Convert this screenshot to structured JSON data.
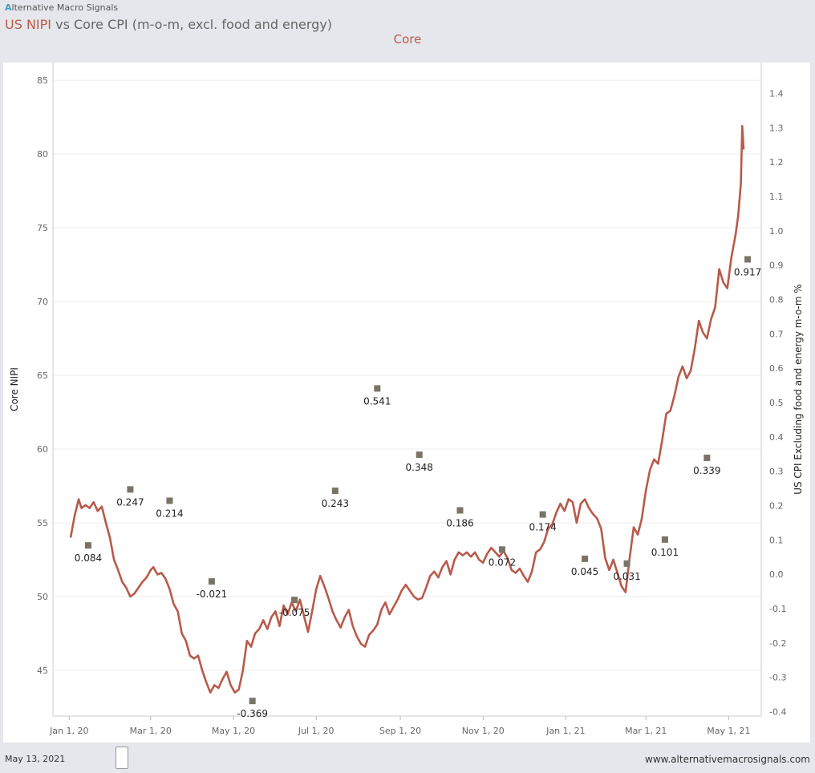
{
  "header": {
    "brand_letter": "A",
    "brand_rest": "lternative Macro Signals",
    "title_highlight": "US NIPI",
    "title_rest": " vs Core CPI (m-o-m, excl. food and energy)",
    "subtitle": "Core"
  },
  "footer": {
    "date": "May 13, 2021",
    "url": "www.alternativemacrosignals.com"
  },
  "colors": {
    "line": "#b85a4a",
    "marker": "#7a7468",
    "grid": "#ececec"
  },
  "chart_data": {
    "type": "line",
    "ylabel": "Core NIPI",
    "y2label": "US CPI Excluding food and energy m-o-m %",
    "ylim": [
      41.9,
      86.2
    ],
    "y2lim": [
      -0.413,
      1.49
    ],
    "yticks": [
      45,
      50,
      55,
      60,
      65,
      70,
      75,
      80,
      85
    ],
    "y2ticks": [
      "-0.4",
      "-0.3",
      "-0.2",
      "-0.1",
      "0.0",
      "0.1",
      "0.2",
      "0.3",
      "0.4",
      "0.5",
      "0.6",
      "0.7",
      "0.8",
      "0.9",
      "1.0",
      "1.1",
      "1.2",
      "1.3",
      "1.4"
    ],
    "xlim": [
      "2019-12-20",
      "2021-05-25"
    ],
    "xticks": [
      {
        "date": "2020-01-01",
        "label": "Jan 1, 20"
      },
      {
        "date": "2020-03-01",
        "label": "Mar 1, 20"
      },
      {
        "date": "2020-05-01",
        "label": "May 1, 20"
      },
      {
        "date": "2020-07-01",
        "label": "Jul 1, 20"
      },
      {
        "date": "2020-09-01",
        "label": "Sep 1, 20"
      },
      {
        "date": "2020-11-01",
        "label": "Nov 1, 20"
      },
      {
        "date": "2021-01-01",
        "label": "Jan 1, 21"
      },
      {
        "date": "2021-03-01",
        "label": "Mar 1, 21"
      },
      {
        "date": "2021-05-01",
        "label": "May 1, 21"
      }
    ],
    "series": [
      {
        "name": "Core NIPI",
        "axis": "left",
        "points": [
          [
            "2020-01-02",
            54.0
          ],
          [
            "2020-01-05",
            55.5
          ],
          [
            "2020-01-08",
            56.6
          ],
          [
            "2020-01-10",
            56.0
          ],
          [
            "2020-01-13",
            56.2
          ],
          [
            "2020-01-16",
            56.0
          ],
          [
            "2020-01-19",
            56.4
          ],
          [
            "2020-01-22",
            55.8
          ],
          [
            "2020-01-25",
            56.1
          ],
          [
            "2020-01-28",
            55.0
          ],
          [
            "2020-01-31",
            54.0
          ],
          [
            "2020-02-03",
            52.5
          ],
          [
            "2020-02-06",
            51.8
          ],
          [
            "2020-02-09",
            51.0
          ],
          [
            "2020-02-12",
            50.6
          ],
          [
            "2020-02-15",
            50.0
          ],
          [
            "2020-02-18",
            50.2
          ],
          [
            "2020-02-21",
            50.6
          ],
          [
            "2020-02-24",
            51.0
          ],
          [
            "2020-02-27",
            51.3
          ],
          [
            "2020-03-01",
            51.8
          ],
          [
            "2020-03-03",
            52.0
          ],
          [
            "2020-03-06",
            51.5
          ],
          [
            "2020-03-09",
            51.6
          ],
          [
            "2020-03-12",
            51.2
          ],
          [
            "2020-03-15",
            50.5
          ],
          [
            "2020-03-18",
            49.5
          ],
          [
            "2020-03-21",
            49.0
          ],
          [
            "2020-03-24",
            47.5
          ],
          [
            "2020-03-27",
            47.0
          ],
          [
            "2020-03-30",
            46.0
          ],
          [
            "2020-04-02",
            45.8
          ],
          [
            "2020-04-05",
            46.0
          ],
          [
            "2020-04-08",
            45.0
          ],
          [
            "2020-04-11",
            44.2
          ],
          [
            "2020-04-14",
            43.5
          ],
          [
            "2020-04-17",
            44.0
          ],
          [
            "2020-04-20",
            43.8
          ],
          [
            "2020-04-23",
            44.4
          ],
          [
            "2020-04-26",
            44.9
          ],
          [
            "2020-04-29",
            44.0
          ],
          [
            "2020-05-02",
            43.5
          ],
          [
            "2020-05-05",
            43.7
          ],
          [
            "2020-05-08",
            45.0
          ],
          [
            "2020-05-11",
            47.0
          ],
          [
            "2020-05-14",
            46.6
          ],
          [
            "2020-05-17",
            47.5
          ],
          [
            "2020-05-20",
            47.8
          ],
          [
            "2020-05-23",
            48.4
          ],
          [
            "2020-05-26",
            47.8
          ],
          [
            "2020-05-29",
            48.6
          ],
          [
            "2020-06-01",
            49.0
          ],
          [
            "2020-06-04",
            48.0
          ],
          [
            "2020-06-07",
            49.4
          ],
          [
            "2020-06-10",
            48.8
          ],
          [
            "2020-06-13",
            49.6
          ],
          [
            "2020-06-16",
            49.0
          ],
          [
            "2020-06-19",
            49.8
          ],
          [
            "2020-06-22",
            48.7
          ],
          [
            "2020-06-25",
            47.6
          ],
          [
            "2020-06-28",
            49.0
          ],
          [
            "2020-07-01",
            50.5
          ],
          [
            "2020-07-04",
            51.4
          ],
          [
            "2020-07-07",
            50.7
          ],
          [
            "2020-07-10",
            49.9
          ],
          [
            "2020-07-13",
            49.0
          ],
          [
            "2020-07-16",
            48.4
          ],
          [
            "2020-07-19",
            47.9
          ],
          [
            "2020-07-22",
            48.6
          ],
          [
            "2020-07-25",
            49.1
          ],
          [
            "2020-07-28",
            48.0
          ],
          [
            "2020-07-31",
            47.3
          ],
          [
            "2020-08-03",
            46.8
          ],
          [
            "2020-08-06",
            46.6
          ],
          [
            "2020-08-09",
            47.4
          ],
          [
            "2020-08-12",
            47.7
          ],
          [
            "2020-08-15",
            48.1
          ],
          [
            "2020-08-18",
            49.1
          ],
          [
            "2020-08-21",
            49.6
          ],
          [
            "2020-08-24",
            48.8
          ],
          [
            "2020-08-27",
            49.3
          ],
          [
            "2020-08-30",
            49.8
          ],
          [
            "2020-09-02",
            50.4
          ],
          [
            "2020-09-05",
            50.8
          ],
          [
            "2020-09-08",
            50.4
          ],
          [
            "2020-09-11",
            50.0
          ],
          [
            "2020-09-14",
            49.8
          ],
          [
            "2020-09-17",
            49.9
          ],
          [
            "2020-09-20",
            50.6
          ],
          [
            "2020-09-23",
            51.4
          ],
          [
            "2020-09-26",
            51.7
          ],
          [
            "2020-09-29",
            51.3
          ],
          [
            "2020-10-02",
            52.0
          ],
          [
            "2020-10-05",
            52.4
          ],
          [
            "2020-10-08",
            51.5
          ],
          [
            "2020-10-11",
            52.5
          ],
          [
            "2020-10-14",
            53.0
          ],
          [
            "2020-10-17",
            52.8
          ],
          [
            "2020-10-20",
            53.0
          ],
          [
            "2020-10-23",
            52.7
          ],
          [
            "2020-10-26",
            53.0
          ],
          [
            "2020-10-29",
            52.5
          ],
          [
            "2020-11-01",
            52.3
          ],
          [
            "2020-11-04",
            52.9
          ],
          [
            "2020-11-07",
            53.3
          ],
          [
            "2020-11-10",
            53.0
          ],
          [
            "2020-11-13",
            52.7
          ],
          [
            "2020-11-16",
            53.1
          ],
          [
            "2020-11-19",
            52.6
          ],
          [
            "2020-11-22",
            51.8
          ],
          [
            "2020-11-25",
            51.6
          ],
          [
            "2020-11-28",
            51.9
          ],
          [
            "2020-12-01",
            51.4
          ],
          [
            "2020-12-04",
            51.0
          ],
          [
            "2020-12-07",
            51.7
          ],
          [
            "2020-12-10",
            53.0
          ],
          [
            "2020-12-13",
            53.2
          ],
          [
            "2020-12-16",
            53.7
          ],
          [
            "2020-12-19",
            54.6
          ],
          [
            "2020-12-22",
            54.9
          ],
          [
            "2020-12-25",
            55.7
          ],
          [
            "2020-12-28",
            56.3
          ],
          [
            "2020-12-31",
            55.8
          ],
          [
            "2021-01-03",
            56.6
          ],
          [
            "2021-01-06",
            56.4
          ],
          [
            "2021-01-09",
            55.0
          ],
          [
            "2021-01-12",
            56.3
          ],
          [
            "2021-01-15",
            56.6
          ],
          [
            "2021-01-18",
            56.0
          ],
          [
            "2021-01-21",
            55.6
          ],
          [
            "2021-01-24",
            55.3
          ],
          [
            "2021-01-27",
            54.6
          ],
          [
            "2021-01-30",
            52.6
          ],
          [
            "2021-02-02",
            51.8
          ],
          [
            "2021-02-05",
            52.5
          ],
          [
            "2021-02-08",
            51.6
          ],
          [
            "2021-02-11",
            50.7
          ],
          [
            "2021-02-14",
            50.3
          ],
          [
            "2021-02-17",
            52.6
          ],
          [
            "2021-02-20",
            54.7
          ],
          [
            "2021-02-23",
            54.2
          ],
          [
            "2021-02-26",
            55.3
          ],
          [
            "2021-03-01",
            57.2
          ],
          [
            "2021-03-04",
            58.6
          ],
          [
            "2021-03-07",
            59.3
          ],
          [
            "2021-03-10",
            59.0
          ],
          [
            "2021-03-13",
            60.6
          ],
          [
            "2021-03-16",
            62.4
          ],
          [
            "2021-03-19",
            62.6
          ],
          [
            "2021-03-22",
            63.6
          ],
          [
            "2021-03-25",
            64.9
          ],
          [
            "2021-03-28",
            65.6
          ],
          [
            "2021-03-31",
            64.8
          ],
          [
            "2021-04-03",
            65.3
          ],
          [
            "2021-04-06",
            66.8
          ],
          [
            "2021-04-09",
            68.7
          ],
          [
            "2021-04-12",
            67.9
          ],
          [
            "2021-04-15",
            67.5
          ],
          [
            "2021-04-18",
            68.8
          ],
          [
            "2021-04-21",
            69.6
          ],
          [
            "2021-04-24",
            72.2
          ],
          [
            "2021-04-27",
            71.3
          ],
          [
            "2021-04-30",
            70.9
          ],
          [
            "2021-05-03",
            73.0
          ],
          [
            "2021-05-06",
            74.5
          ],
          [
            "2021-05-08",
            75.8
          ],
          [
            "2021-05-10",
            78.0
          ],
          [
            "2021-05-11",
            81.9
          ],
          [
            "2021-05-12",
            80.3
          ]
        ]
      },
      {
        "name": "Core CPI m-o-m",
        "axis": "right",
        "type": "scatter",
        "points": [
          {
            "date": "2020-01-15",
            "value": 0.084,
            "label": "0.084"
          },
          {
            "date": "2020-02-15",
            "value": 0.247,
            "label": "0.247"
          },
          {
            "date": "2020-03-15",
            "value": 0.214,
            "label": "0.214"
          },
          {
            "date": "2020-04-15",
            "value": -0.021,
            "label": "-0.021"
          },
          {
            "date": "2020-05-15",
            "value": -0.369,
            "label": "-0.369"
          },
          {
            "date": "2020-06-15",
            "value": -0.075,
            "label": "-0.075"
          },
          {
            "date": "2020-07-15",
            "value": 0.243,
            "label": "0.243"
          },
          {
            "date": "2020-08-15",
            "value": 0.541,
            "label": "0.541"
          },
          {
            "date": "2020-09-15",
            "value": 0.348,
            "label": "0.348"
          },
          {
            "date": "2020-10-15",
            "value": 0.186,
            "label": "0.186"
          },
          {
            "date": "2020-11-15",
            "value": 0.072,
            "label": "0.072"
          },
          {
            "date": "2020-12-15",
            "value": 0.174,
            "label": "0.174"
          },
          {
            "date": "2021-01-15",
            "value": 0.045,
            "label": "0.045"
          },
          {
            "date": "2021-02-15",
            "value": 0.031,
            "label": "0.031"
          },
          {
            "date": "2021-03-15",
            "value": 0.101,
            "label": "0.101"
          },
          {
            "date": "2021-04-15",
            "value": 0.339,
            "label": "0.339"
          },
          {
            "date": "2021-05-15",
            "value": 0.917,
            "label": "0.917"
          }
        ]
      }
    ]
  }
}
